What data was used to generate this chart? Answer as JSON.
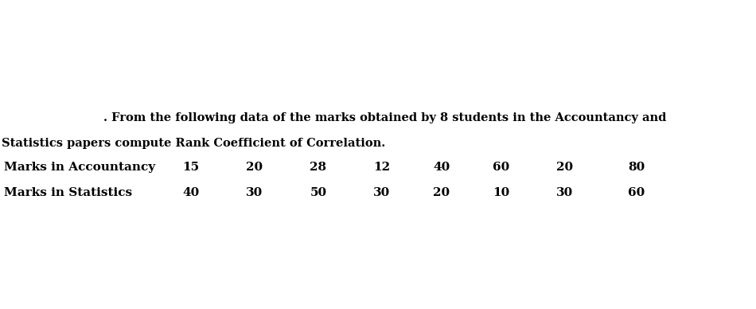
{
  "title_line1": ". From the following data of the marks obtained by 8 students in the Accountancy and",
  "title_line2": "Statistics papers compute Rank Coefficient of Correlation.",
  "row1_label": "Marks in Accountancy",
  "row2_label": "Marks in Statistics",
  "accountancy": [
    15,
    20,
    28,
    12,
    40,
    60,
    20,
    80
  ],
  "statistics": [
    40,
    30,
    50,
    30,
    20,
    10,
    30,
    60
  ],
  "bg_color": "#ffffff",
  "text_color": "#000000",
  "title_fontsize": 10.5,
  "label_fontsize": 11,
  "data_fontsize": 11,
  "fig_width": 9.5,
  "fig_height": 3.88,
  "fig_dpi": 100
}
